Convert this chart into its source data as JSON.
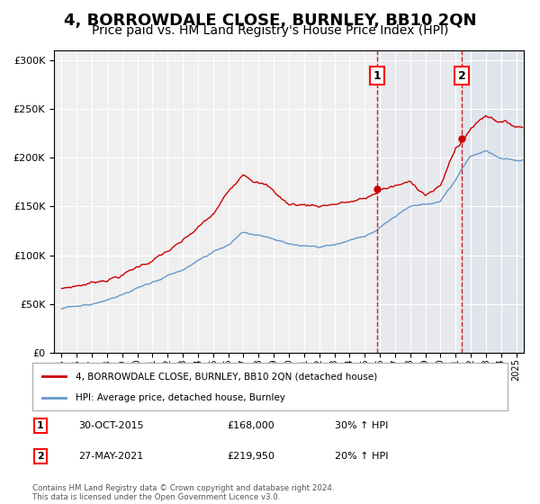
{
  "title": "4, BORROWDALE CLOSE, BURNLEY, BB10 2QN",
  "subtitle": "Price paid vs. HM Land Registry's House Price Index (HPI)",
  "title_fontsize": 13,
  "subtitle_fontsize": 10,
  "background_color": "#ffffff",
  "plot_bg_color": "#efefef",
  "legend_label_red": "4, BORROWDALE CLOSE, BURNLEY, BB10 2QN (detached house)",
  "legend_label_blue": "HPI: Average price, detached house, Burnley",
  "footnote": "Contains HM Land Registry data © Crown copyright and database right 2024.\nThis data is licensed under the Open Government Licence v3.0.",
  "marker1_date": "30-OCT-2015",
  "marker1_price": "£168,000",
  "marker1_hpi": "30% ↑ HPI",
  "marker2_date": "27-MAY-2021",
  "marker2_price": "£219,950",
  "marker2_hpi": "20% ↑ HPI",
  "red_color": "#cc0000",
  "blue_color": "#6699cc",
  "marker1_x": 2015.83,
  "marker2_x": 2021.42,
  "ylim": [
    0,
    310000
  ],
  "xlim": [
    1994.5,
    2025.5
  ],
  "yticks": [
    0,
    50000,
    100000,
    150000,
    200000,
    250000,
    300000
  ],
  "xticks": [
    1995,
    1996,
    1997,
    1998,
    1999,
    2000,
    2001,
    2002,
    2003,
    2004,
    2005,
    2006,
    2007,
    2008,
    2009,
    2010,
    2011,
    2012,
    2013,
    2014,
    2015,
    2016,
    2017,
    2018,
    2019,
    2020,
    2021,
    2022,
    2023,
    2024,
    2025
  ]
}
